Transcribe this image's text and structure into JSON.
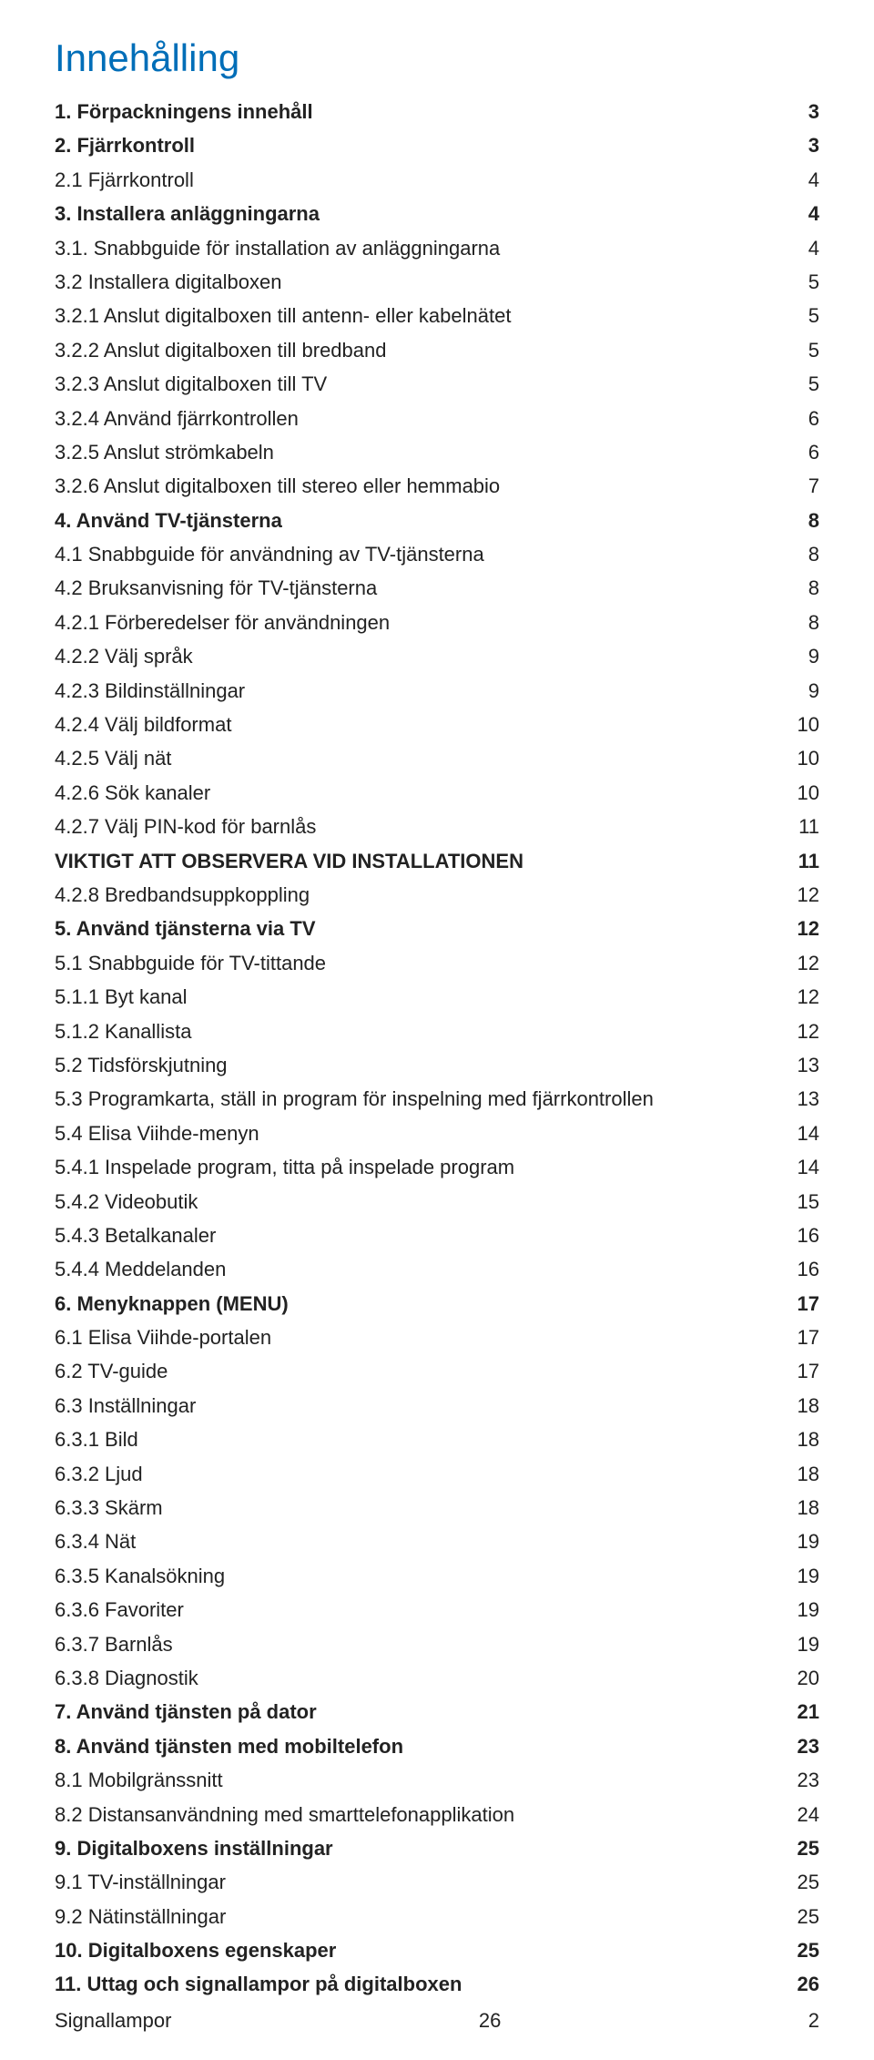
{
  "title": "Innehålling",
  "text_color": "#222222",
  "title_color": "#006eb8",
  "background_color": "#ffffff",
  "title_fontsize": 42,
  "body_fontsize": 22,
  "line_height": 1.7,
  "entries": [
    {
      "label": "1. Förpackningens innehåll",
      "page": "3",
      "bold": true
    },
    {
      "label": "2. Fjärrkontroll",
      "page": "3",
      "bold": true
    },
    {
      "label": "2.1 Fjärrkontroll",
      "page": "4",
      "bold": false
    },
    {
      "label": "3. Installera anläggningarna",
      "page": "4",
      "bold": true
    },
    {
      "label": "3.1. Snabbguide för installation av anläggningarna",
      "page": "4",
      "bold": false
    },
    {
      "label": "3.2 Installera digitalboxen",
      "page": "5",
      "bold": false
    },
    {
      "label": "3.2.1 Anslut digitalboxen till antenn- eller kabelnätet",
      "page": "5",
      "bold": false
    },
    {
      "label": "3.2.2 Anslut digitalboxen till bredband",
      "page": "5",
      "bold": false
    },
    {
      "label": "3.2.3 Anslut digitalboxen till TV",
      "page": "5",
      "bold": false
    },
    {
      "label": "3.2.4 Använd fjärrkontrollen",
      "page": "6",
      "bold": false
    },
    {
      "label": "3.2.5 Anslut strömkabeln",
      "page": "6",
      "bold": false
    },
    {
      "label": "3.2.6 Anslut digitalboxen till stereo eller hemmabio",
      "page": "7",
      "bold": false
    },
    {
      "label": "4. Använd TV-tjänsterna",
      "page": "8",
      "bold": true
    },
    {
      "label": "4.1 Snabbguide för användning av TV-tjänsterna",
      "page": "8",
      "bold": false
    },
    {
      "label": "4.2 Bruksanvisning för TV-tjänsterna",
      "page": "8",
      "bold": false
    },
    {
      "label": "4.2.1 Förberedelser för användningen",
      "page": "8",
      "bold": false
    },
    {
      "label": "4.2.2 Välj språk",
      "page": "9",
      "bold": false
    },
    {
      "label": "4.2.3 Bildinställningar",
      "page": "9",
      "bold": false
    },
    {
      "label": "4.2.4 Välj bildformat",
      "page": "10",
      "bold": false
    },
    {
      "label": "4.2.5 Välj nät",
      "page": "10",
      "bold": false
    },
    {
      "label": "4.2.6 Sök kanaler",
      "page": "10",
      "bold": false
    },
    {
      "label": "4.2.7 Välj PIN-kod för barnlås",
      "page": "11",
      "bold": false
    },
    {
      "label": "VIKTIGT ATT OBSERVERA VID INSTALLATIONEN",
      "page": "11",
      "bold": true
    },
    {
      "label": "4.2.8 Bredbandsuppkoppling",
      "page": "12",
      "bold": false
    },
    {
      "label": "5. Använd tjänsterna via TV",
      "page": "12",
      "bold": true
    },
    {
      "label": "5.1 Snabbguide för TV-tittande",
      "page": "12",
      "bold": false
    },
    {
      "label": "5.1.1 Byt kanal",
      "page": "12",
      "bold": false
    },
    {
      "label": "5.1.2 Kanallista",
      "page": "12",
      "bold": false
    },
    {
      "label": "5.2 Tidsförskjutning",
      "page": "13",
      "bold": false
    },
    {
      "label": "5.3 Programkarta, ställ in program för inspelning med fjärrkontrollen",
      "page": "13",
      "bold": false
    },
    {
      "label": "5.4 Elisa Viihde-menyn",
      "page": "14",
      "bold": false
    },
    {
      "label": "5.4.1 Inspelade program, titta på inspelade program",
      "page": "14",
      "bold": false
    },
    {
      "label": "5.4.2 Videobutik",
      "page": "15",
      "bold": false
    },
    {
      "label": "5.4.3 Betalkanaler",
      "page": "16",
      "bold": false
    },
    {
      "label": "5.4.4 Meddelanden",
      "page": "16",
      "bold": false
    },
    {
      "label": "6. Menyknappen (MENU)",
      "page": "17",
      "bold": true
    },
    {
      "label": "6.1 Elisa Viihde-portalen",
      "page": "17",
      "bold": false
    },
    {
      "label": "6.2 TV-guide",
      "page": "17",
      "bold": false
    },
    {
      "label": "6.3 Inställningar",
      "page": "18",
      "bold": false
    },
    {
      "label": "6.3.1 Bild",
      "page": "18",
      "bold": false
    },
    {
      "label": "6.3.2 Ljud",
      "page": "18",
      "bold": false
    },
    {
      "label": "6.3.3 Skärm",
      "page": "18",
      "bold": false
    },
    {
      "label": "6.3.4 Nät",
      "page": "19",
      "bold": false
    },
    {
      "label": "6.3.5 Kanalsökning",
      "page": "19",
      "bold": false
    },
    {
      "label": "6.3.6 Favoriter",
      "page": "19",
      "bold": false
    },
    {
      "label": "6.3.7 Barnlås",
      "page": "19",
      "bold": false
    },
    {
      "label": "6.3.8 Diagnostik",
      "page": "20",
      "bold": false
    },
    {
      "label": "7. Använd tjänsten på dator",
      "page": "21",
      "bold": true
    },
    {
      "label": "8. Använd tjänsten med mobiltelefon",
      "page": "23",
      "bold": true
    },
    {
      "label": "8.1 Mobilgränssnitt",
      "page": "23",
      "bold": false
    },
    {
      "label": "8.2 Distansanvändning med smarttelefonapplikation",
      "page": "24",
      "bold": false
    },
    {
      "label": "9. Digitalboxens inställningar",
      "page": "25",
      "bold": true
    },
    {
      "label": "9.1 TV-inställningar",
      "page": "25",
      "bold": false
    },
    {
      "label": "9.2 Nätinställningar",
      "page": "25",
      "bold": false
    },
    {
      "label": "10. Digitalboxens egenskaper",
      "page": "25",
      "bold": true
    },
    {
      "label": "11. Uttag och signallampor på digitalboxen",
      "page": "26",
      "bold": true
    }
  ],
  "footer": {
    "label": "Signallampor",
    "page_left": "26",
    "page_right": "2"
  }
}
